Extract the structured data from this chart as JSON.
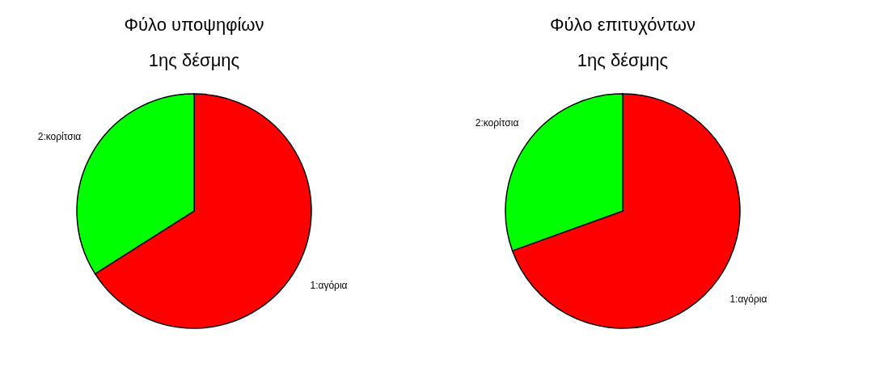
{
  "chart_data": [
    {
      "type": "pie",
      "title": [
        "Φύλο υποψηφίων",
        "1ης δέσμης"
      ],
      "categories": [
        "1:αγόρια",
        "2:κορίτσια"
      ],
      "values": [
        66,
        34
      ],
      "colors": [
        "#ff0000",
        "#00ff00"
      ]
    },
    {
      "type": "pie",
      "title": [
        "Φύλο επιτυχόντων",
        "1ης δέσμης"
      ],
      "categories": [
        "1:αγόρια",
        "2:κορίτσια"
      ],
      "values": [
        69.5,
        30.5
      ],
      "colors": [
        "#ff0000",
        "#00ff00"
      ]
    }
  ]
}
